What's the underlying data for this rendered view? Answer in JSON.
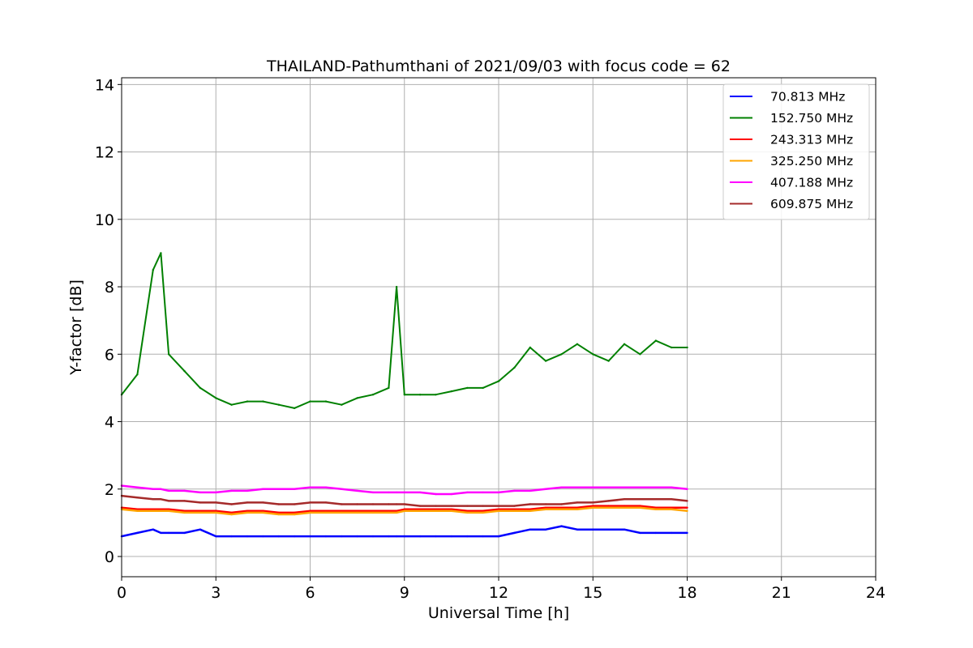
{
  "chart_data": {
    "type": "line",
    "title": "THAILAND-Pathumthani of 2021/09/03 with focus code = 62",
    "xlabel": "Universal Time [h]",
    "ylabel": "Y-factor [dB]",
    "xlim": [
      0,
      24
    ],
    "ylim": [
      -0.6,
      14.2
    ],
    "xticks": [
      0,
      3,
      6,
      9,
      12,
      15,
      18,
      21,
      24
    ],
    "yticks": [
      0,
      2,
      4,
      6,
      8,
      10,
      12,
      14
    ],
    "grid": true,
    "legend_position": "top-right",
    "x": [
      0,
      0.5,
      1,
      1.25,
      1.5,
      2,
      2.5,
      3,
      3.5,
      4,
      4.5,
      5,
      5.5,
      6,
      6.5,
      7,
      7.5,
      8,
      8.5,
      8.75,
      9,
      9.5,
      10,
      10.5,
      11,
      11.5,
      12,
      12.5,
      13,
      13.5,
      14,
      14.5,
      15,
      15.5,
      16,
      16.5,
      17,
      17.5,
      18
    ],
    "series": [
      {
        "name": " 70.813 MHz",
        "color": "#0000ff",
        "values": [
          0.6,
          0.7,
          0.8,
          0.7,
          0.7,
          0.7,
          0.8,
          0.6,
          0.6,
          0.6,
          0.6,
          0.6,
          0.6,
          0.6,
          0.6,
          0.6,
          0.6,
          0.6,
          0.6,
          0.6,
          0.6,
          0.6,
          0.6,
          0.6,
          0.6,
          0.6,
          0.6,
          0.7,
          0.8,
          0.8,
          0.9,
          0.8,
          0.8,
          0.8,
          0.8,
          0.7,
          0.7,
          0.7,
          0.7
        ]
      },
      {
        "name": "152.750 MHz",
        "color": "#008000",
        "values": [
          4.8,
          5.4,
          8.5,
          9.0,
          6.0,
          5.5,
          5.0,
          4.7,
          4.5,
          4.6,
          4.6,
          4.5,
          4.4,
          4.6,
          4.6,
          4.5,
          4.7,
          4.8,
          5.0,
          8.0,
          4.8,
          4.8,
          4.8,
          4.9,
          5.0,
          5.0,
          5.2,
          5.6,
          6.2,
          5.8,
          6.0,
          6.3,
          6.0,
          5.8,
          6.3,
          6.0,
          6.4,
          6.2,
          6.2
        ]
      },
      {
        "name": "243.313 MHz",
        "color": "#ff0000",
        "values": [
          1.45,
          1.4,
          1.4,
          1.4,
          1.4,
          1.35,
          1.35,
          1.35,
          1.3,
          1.35,
          1.35,
          1.3,
          1.3,
          1.35,
          1.35,
          1.35,
          1.35,
          1.35,
          1.35,
          1.35,
          1.4,
          1.4,
          1.4,
          1.4,
          1.35,
          1.35,
          1.4,
          1.4,
          1.4,
          1.45,
          1.45,
          1.45,
          1.5,
          1.5,
          1.5,
          1.5,
          1.45,
          1.45,
          1.45
        ]
      },
      {
        "name": "325.250 MHz",
        "color": "#ffa500",
        "values": [
          1.4,
          1.35,
          1.35,
          1.35,
          1.35,
          1.3,
          1.3,
          1.3,
          1.25,
          1.3,
          1.3,
          1.25,
          1.25,
          1.3,
          1.3,
          1.3,
          1.3,
          1.3,
          1.3,
          1.3,
          1.35,
          1.35,
          1.35,
          1.35,
          1.3,
          1.3,
          1.35,
          1.35,
          1.35,
          1.4,
          1.4,
          1.4,
          1.45,
          1.45,
          1.45,
          1.45,
          1.4,
          1.4,
          1.35
        ]
      },
      {
        "name": "407.188 MHz",
        "color": "#ff00ff",
        "values": [
          2.1,
          2.05,
          2.0,
          2.0,
          1.95,
          1.95,
          1.9,
          1.9,
          1.95,
          1.95,
          2.0,
          2.0,
          2.0,
          2.05,
          2.05,
          2.0,
          1.95,
          1.9,
          1.9,
          1.9,
          1.9,
          1.9,
          1.85,
          1.85,
          1.9,
          1.9,
          1.9,
          1.95,
          1.95,
          2.0,
          2.05,
          2.05,
          2.05,
          2.05,
          2.05,
          2.05,
          2.05,
          2.05,
          2.0
        ]
      },
      {
        "name": "609.875 MHz",
        "color": "#a52a2a",
        "values": [
          1.8,
          1.75,
          1.7,
          1.7,
          1.65,
          1.65,
          1.6,
          1.6,
          1.55,
          1.6,
          1.6,
          1.55,
          1.55,
          1.6,
          1.6,
          1.55,
          1.55,
          1.55,
          1.55,
          1.55,
          1.55,
          1.5,
          1.5,
          1.5,
          1.5,
          1.5,
          1.5,
          1.5,
          1.55,
          1.55,
          1.55,
          1.6,
          1.6,
          1.65,
          1.7,
          1.7,
          1.7,
          1.7,
          1.65
        ]
      }
    ]
  }
}
